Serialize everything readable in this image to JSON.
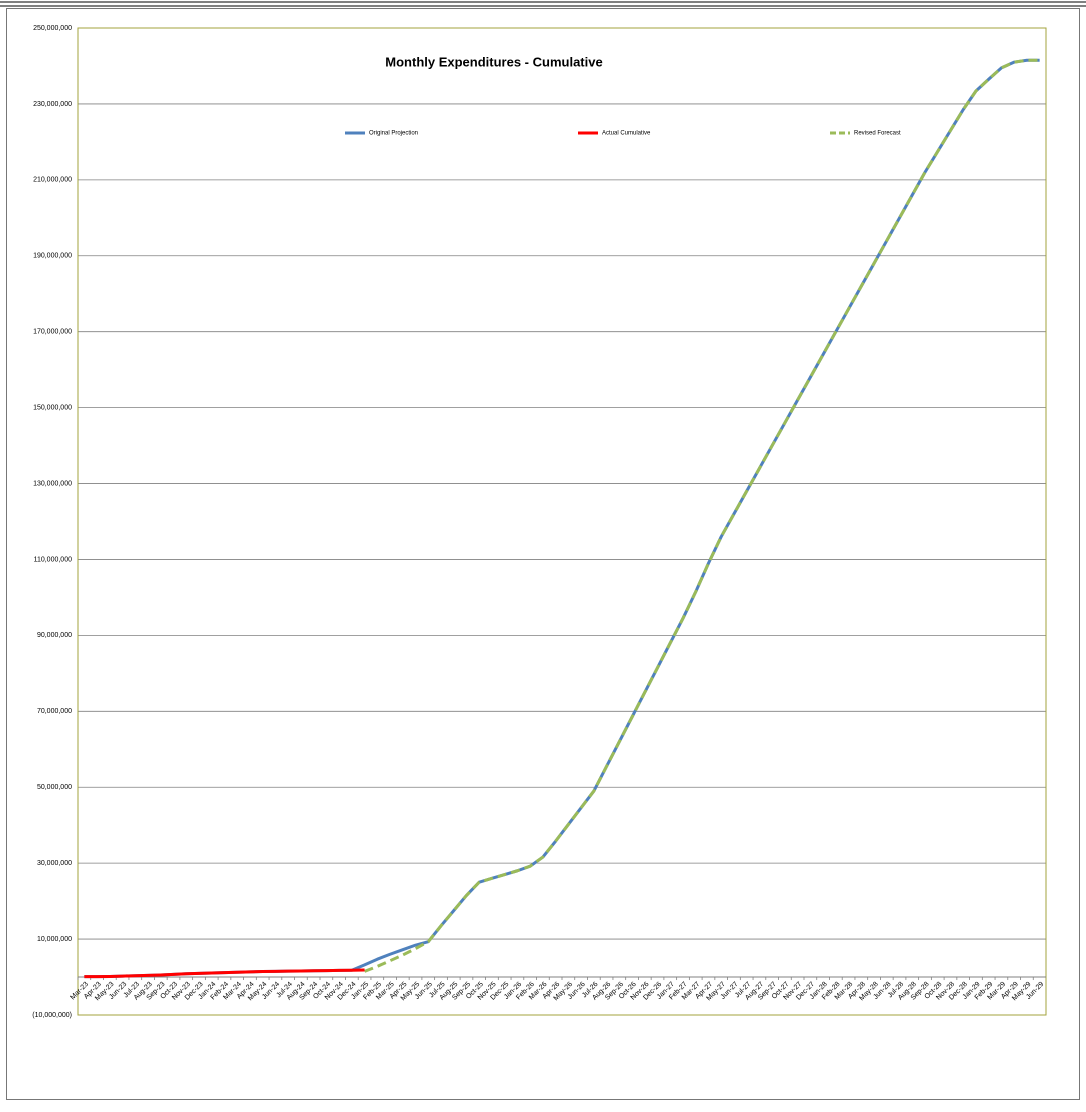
{
  "chart_data": {
    "type": "line",
    "title": "Monthly Expenditures - Cumulative",
    "categories": [
      "Mar-23",
      "Apr-23",
      "May-23",
      "Jun-23",
      "Jul-23",
      "Aug-23",
      "Sep-23",
      "Oct-23",
      "Nov-23",
      "Dec-23",
      "Jan-24",
      "Feb-24",
      "Mar-24",
      "Apr-24",
      "May-24",
      "Jun-24",
      "Jul-24",
      "Aug-24",
      "Sep-24",
      "Oct-24",
      "Nov-24",
      "Dec-24",
      "Jan-25",
      "Feb-25",
      "Mar-25",
      "Apr-25",
      "May-25",
      "Jun-25",
      "Jul-25",
      "Aug-25",
      "Sep-25",
      "Oct-25",
      "Nov-25",
      "Dec-25",
      "Jan-26",
      "Feb-26",
      "Mar-26",
      "Apr-26",
      "May-26",
      "Jun-26",
      "Jul-26",
      "Aug-26",
      "Sep-26",
      "Oct-26",
      "Nov-26",
      "Dec-26",
      "Jan-27",
      "Feb-27",
      "Mar-27",
      "Apr-27",
      "May-27",
      "Jun-27",
      "Jul-27",
      "Aug-27",
      "Sep-27",
      "Oct-27",
      "Nov-27",
      "Dec-27",
      "Jan-28",
      "Feb-28",
      "Mar-28",
      "Apr-28",
      "May-28",
      "Jun-28",
      "Jul-28",
      "Aug-28",
      "Sep-28",
      "Oct-28",
      "Nov-28",
      "Dec-28",
      "Jan-29",
      "Feb-29",
      "Mar-29",
      "Apr-29",
      "May-29",
      "Jun-29"
    ],
    "series": [
      {
        "name": "Original Projection",
        "color": "#4f81bd",
        "dash": false,
        "values": [
          100000,
          120000,
          150000,
          250000,
          350000,
          450000,
          550000,
          700000,
          850000,
          950000,
          1050000,
          1150000,
          1250000,
          1350000,
          1450000,
          1500000,
          1550000,
          1600000,
          1650000,
          1700000,
          1750000,
          1800000,
          3200000,
          4700000,
          6000000,
          7200000,
          8400000,
          9300000,
          13500000,
          17500000,
          21500000,
          25000000,
          26000000,
          27000000,
          28000000,
          29200000,
          31600000,
          35800000,
          40200000,
          44600000,
          49000000,
          55500000,
          62000000,
          68500000,
          75000000,
          81500000,
          88000000,
          94500000,
          101500000,
          109000000,
          116000000,
          122000000,
          128000000,
          134000000,
          140000000,
          146000000,
          152000000,
          158000000,
          164000000,
          170000000,
          176000000,
          182000000,
          188000000,
          194000000,
          200000000,
          206000000,
          212000000,
          217500000,
          223000000,
          228500000,
          233400000,
          236500000,
          239500000,
          241000000,
          241500000,
          241500000
        ]
      },
      {
        "name": "Actual Cumulative",
        "color": "#ff0000",
        "dash": false,
        "values": [
          100000,
          120000,
          150000,
          250000,
          350000,
          450000,
          550000,
          700000,
          850000,
          950000,
          1050000,
          1150000,
          1250000,
          1350000,
          1450000,
          1500000,
          1550000,
          1600000,
          1650000,
          1700000,
          1750000,
          1800000,
          1850000,
          null,
          null,
          null,
          null,
          null,
          null,
          null,
          null,
          null,
          null,
          null,
          null,
          null,
          null,
          null,
          null,
          null,
          null,
          null,
          null,
          null,
          null,
          null,
          null,
          null,
          null,
          null,
          null,
          null,
          null,
          null,
          null,
          null,
          null,
          null,
          null,
          null,
          null,
          null,
          null,
          null,
          null,
          null,
          null,
          null,
          null,
          null,
          null,
          null,
          null,
          null,
          null,
          null
        ]
      },
      {
        "name": "Revised Forecast",
        "color": "#9bbb59",
        "dash": true,
        "values": [
          null,
          null,
          null,
          null,
          null,
          null,
          null,
          null,
          null,
          null,
          null,
          null,
          null,
          null,
          null,
          null,
          null,
          null,
          null,
          null,
          null,
          null,
          1500000,
          2800000,
          4300000,
          5800000,
          7500000,
          9300000,
          13500000,
          17500000,
          21500000,
          25000000,
          26000000,
          27000000,
          28000000,
          29200000,
          31600000,
          35800000,
          40200000,
          44600000,
          49000000,
          55500000,
          62000000,
          68500000,
          75000000,
          81500000,
          88000000,
          94500000,
          101500000,
          109000000,
          116000000,
          122000000,
          128000000,
          134000000,
          140000000,
          146000000,
          152000000,
          158000000,
          164000000,
          170000000,
          176000000,
          182000000,
          188000000,
          194000000,
          200000000,
          206000000,
          212000000,
          217500000,
          223000000,
          228500000,
          233400000,
          236500000,
          239500000,
          241000000,
          241500000,
          241500000
        ]
      }
    ],
    "ylim": [
      -10000000,
      250000000
    ],
    "yticks": [
      {
        "value": -10000000,
        "label": "(10,000,000)"
      },
      {
        "value": 10000000,
        "label": "10,000,000"
      },
      {
        "value": 30000000,
        "label": "30,000,000"
      },
      {
        "value": 50000000,
        "label": "50,000,000"
      },
      {
        "value": 70000000,
        "label": "70,000,000"
      },
      {
        "value": 90000000,
        "label": "90,000,000"
      },
      {
        "value": 110000000,
        "label": "110,000,000"
      },
      {
        "value": 130000000,
        "label": "130,000,000"
      },
      {
        "value": 150000000,
        "label": "150,000,000"
      },
      {
        "value": 170000000,
        "label": "170,000,000"
      },
      {
        "value": 190000000,
        "label": "190,000,000"
      },
      {
        "value": 210000000,
        "label": "210,000,000"
      },
      {
        "value": 230000000,
        "label": "230,000,000"
      },
      {
        "value": 250000000,
        "label": "250,000,000"
      }
    ],
    "grid": true,
    "legend": "top"
  }
}
